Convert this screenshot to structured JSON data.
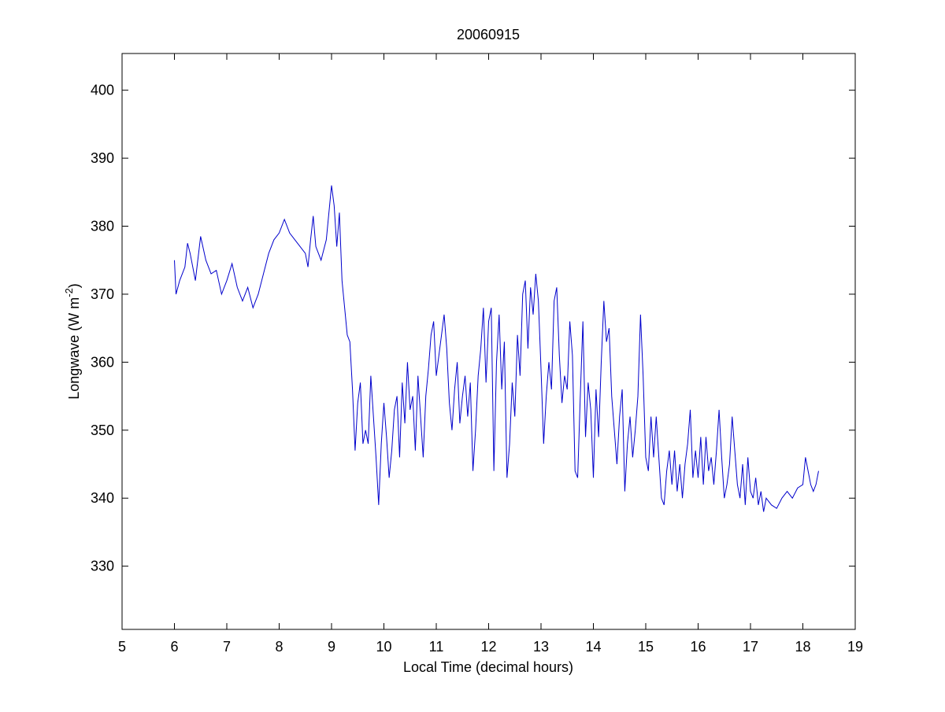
{
  "chart_data": {
    "type": "line",
    "title": "20060915",
    "xlabel": "Local Time (decimal hours)",
    "ylabel": {
      "text": "Longwave (W m",
      "superscript": "-2",
      "suffix": ")"
    },
    "xlim": [
      5,
      19
    ],
    "xticks": [
      5,
      6,
      7,
      8,
      9,
      10,
      11,
      12,
      13,
      14,
      15,
      16,
      17,
      18,
      19
    ],
    "ylim": [
      320.7,
      405.4
    ],
    "yticks": [
      330,
      340,
      350,
      360,
      370,
      380,
      390,
      400
    ],
    "grid": false,
    "series": [
      {
        "color": "#0000cc",
        "x": [
          6.0,
          6.03,
          6.1,
          6.2,
          6.25,
          6.3,
          6.4,
          6.5,
          6.6,
          6.7,
          6.8,
          6.9,
          7.0,
          7.1,
          7.2,
          7.3,
          7.4,
          7.5,
          7.6,
          7.7,
          7.8,
          7.9,
          8.0,
          8.1,
          8.2,
          8.3,
          8.4,
          8.5,
          8.55,
          8.6,
          8.65,
          8.7,
          8.8,
          8.9,
          9.0,
          9.05,
          9.1,
          9.15,
          9.2,
          9.25,
          9.3,
          9.35,
          9.4,
          9.45,
          9.5,
          9.55,
          9.6,
          9.65,
          9.7,
          9.75,
          9.8,
          9.85,
          9.9,
          9.95,
          10.0,
          10.05,
          10.1,
          10.15,
          10.2,
          10.25,
          10.3,
          10.35,
          10.4,
          10.45,
          10.5,
          10.55,
          10.6,
          10.65,
          10.7,
          10.75,
          10.8,
          10.85,
          10.9,
          10.95,
          11.0,
          11.05,
          11.1,
          11.15,
          11.2,
          11.25,
          11.3,
          11.35,
          11.4,
          11.45,
          11.5,
          11.55,
          11.6,
          11.65,
          11.7,
          11.75,
          11.8,
          11.85,
          11.9,
          11.95,
          12.0,
          12.05,
          12.1,
          12.15,
          12.2,
          12.25,
          12.3,
          12.35,
          12.4,
          12.45,
          12.5,
          12.55,
          12.6,
          12.65,
          12.7,
          12.75,
          12.8,
          12.85,
          12.9,
          12.95,
          13.0,
          13.05,
          13.1,
          13.15,
          13.2,
          13.25,
          13.3,
          13.35,
          13.4,
          13.45,
          13.5,
          13.55,
          13.6,
          13.65,
          13.7,
          13.75,
          13.8,
          13.85,
          13.9,
          13.95,
          14.0,
          14.05,
          14.1,
          14.15,
          14.2,
          14.25,
          14.3,
          14.35,
          14.4,
          14.45,
          14.5,
          14.55,
          14.6,
          14.65,
          14.7,
          14.75,
          14.8,
          14.85,
          14.9,
          14.95,
          15.0,
          15.05,
          15.1,
          15.15,
          15.2,
          15.3,
          15.35,
          15.4,
          15.45,
          15.5,
          15.55,
          15.6,
          15.65,
          15.7,
          15.75,
          15.8,
          15.85,
          15.9,
          15.95,
          16.0,
          16.05,
          16.1,
          16.15,
          16.2,
          16.25,
          16.3,
          16.35,
          16.4,
          16.45,
          16.5,
          16.55,
          16.6,
          16.65,
          16.7,
          16.75,
          16.8,
          16.85,
          16.9,
          16.95,
          17.0,
          17.05,
          17.1,
          17.15,
          17.2,
          17.25,
          17.3,
          17.4,
          17.5,
          17.6,
          17.7,
          17.8,
          17.9,
          18.0,
          18.05,
          18.1,
          18.15,
          18.2,
          18.25,
          18.3
        ],
        "values": [
          375,
          370,
          372,
          374,
          377.5,
          376,
          372,
          378.5,
          375,
          373,
          373.5,
          370,
          372,
          374.5,
          371,
          369,
          371,
          368,
          370,
          373,
          376,
          378,
          379,
          381,
          379,
          378,
          377,
          376,
          374,
          378,
          381.5,
          377,
          375,
          378,
          386,
          383,
          377,
          382,
          372,
          368,
          364,
          363,
          356,
          347,
          354,
          357,
          348,
          350,
          348,
          358,
          352,
          346,
          339,
          348,
          354,
          349,
          343,
          347,
          353,
          355,
          346,
          357,
          351,
          360,
          353,
          355,
          347,
          358,
          352,
          346,
          355,
          359,
          364,
          366,
          358,
          361,
          364,
          367,
          362,
          354,
          350,
          356,
          360,
          351,
          355,
          358,
          352,
          357,
          344,
          350,
          358,
          362,
          368,
          357,
          366,
          368,
          344,
          360,
          367,
          356,
          363,
          343,
          348,
          357,
          352,
          364,
          358,
          370,
          372,
          362,
          371,
          367,
          373,
          369,
          359,
          348,
          355,
          360,
          356,
          369,
          371,
          361,
          354,
          358,
          356,
          366,
          361,
          344,
          343,
          355,
          366,
          349,
          357,
          353,
          343,
          356,
          349,
          360,
          369,
          363,
          365,
          355,
          350,
          345,
          352,
          356,
          341,
          348,
          352,
          346,
          350,
          355,
          367,
          358,
          346,
          344,
          352,
          346,
          352,
          340,
          339,
          344,
          347,
          342,
          347,
          341,
          345,
          340,
          345,
          348,
          353,
          343,
          347,
          343,
          349,
          342,
          349,
          344,
          346,
          342,
          347,
          353,
          346,
          340,
          342,
          345,
          352,
          347,
          342,
          340,
          345,
          339,
          346,
          341,
          340,
          343,
          339,
          341,
          338,
          340,
          339,
          338.5,
          340,
          341,
          340,
          341.5,
          342,
          346,
          344,
          342,
          341,
          342,
          344
        ]
      }
    ]
  }
}
